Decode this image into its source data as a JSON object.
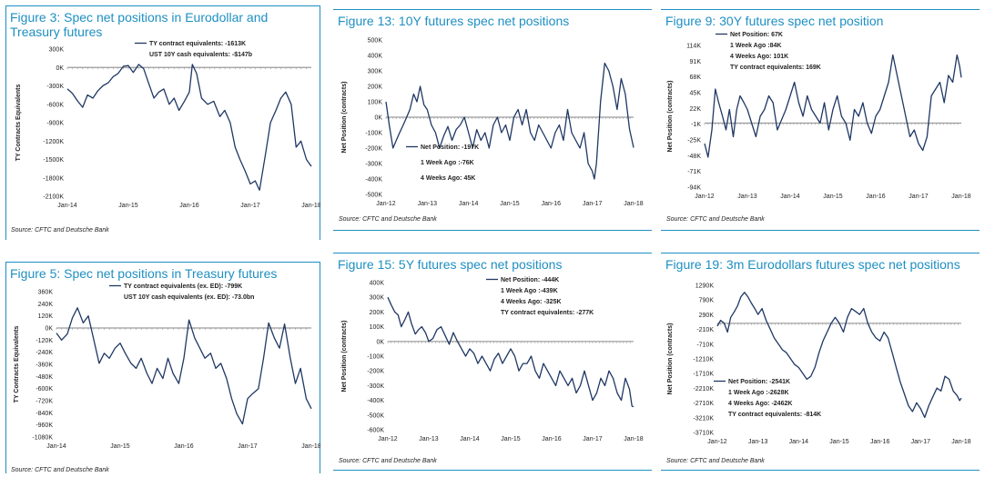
{
  "colors": {
    "accent": "#1e8fc2",
    "series": "#1f3864",
    "zero_line": "#9a9a9a"
  },
  "chart_data": [
    {
      "id": "fig3",
      "type": "line",
      "title": "Figure 3: Spec net positions in Eurodollar and Treasury futures",
      "ylabel": "TY Contracts Equivalents",
      "xlabel": "",
      "yticks": [
        "300K",
        "0K",
        "-300K",
        "-600K",
        "-900K",
        "-1200K",
        "-1500K",
        "-1800K",
        "-2100K"
      ],
      "ylim": [
        -2100,
        300
      ],
      "xticks": [
        "Jan-14",
        "Jan-15",
        "Jan-16",
        "Jan-17",
        "Jan-18"
      ],
      "xlim": [
        2014.0,
        2018.0
      ],
      "annotations": [
        "TY contract equivalents: -1613K",
        "UST 10Y cash equivalents: -$147b"
      ],
      "source": "Source: CFTC and Deutsche Bank",
      "series": [
        {
          "name": "TY contract equivalents",
          "x": [
            2014.0,
            2014.08,
            2014.17,
            2014.25,
            2014.33,
            2014.42,
            2014.5,
            2014.58,
            2014.67,
            2014.75,
            2014.83,
            2014.92,
            2015.0,
            2015.08,
            2015.17,
            2015.25,
            2015.33,
            2015.42,
            2015.5,
            2015.58,
            2015.67,
            2015.75,
            2015.83,
            2015.92,
            2016.0,
            2016.05,
            2016.12,
            2016.2,
            2016.3,
            2016.4,
            2016.5,
            2016.58,
            2016.67,
            2016.75,
            2016.83,
            2016.92,
            2017.0,
            2017.08,
            2017.15,
            2017.25,
            2017.33,
            2017.42,
            2017.5,
            2017.58,
            2017.67,
            2017.75,
            2017.83,
            2017.92,
            2018.0
          ],
          "values": [
            -350,
            -420,
            -550,
            -650,
            -450,
            -500,
            -380,
            -300,
            -250,
            -150,
            -100,
            20,
            30,
            -80,
            50,
            -20,
            -250,
            -500,
            -400,
            -350,
            -600,
            -500,
            -700,
            -550,
            -400,
            50,
            -100,
            -500,
            -600,
            -550,
            -800,
            -700,
            -900,
            -1300,
            -1500,
            -1700,
            -1900,
            -1850,
            -2000,
            -1400,
            -900,
            -700,
            -500,
            -400,
            -600,
            -1300,
            -1200,
            -1500,
            -1613
          ]
        }
      ]
    },
    {
      "id": "fig13",
      "type": "line",
      "title": "Figure 13: 10Y futures spec net positions",
      "ylabel": "Net Position (contracts)",
      "xlabel": "",
      "yticks": [
        "500K",
        "400K",
        "300K",
        "200K",
        "100K",
        "0K",
        "-100K",
        "-200K",
        "-300K",
        "-400K",
        "-500K"
      ],
      "ylim": [
        -500,
        500
      ],
      "xticks": [
        "Jan-12",
        "Jan-13",
        "Jan-14",
        "Jan-15",
        "Jan-16",
        "Jan-17",
        "Jan-18"
      ],
      "xlim": [
        2012.0,
        2018.0
      ],
      "annotations": [
        "Net Position: -197K",
        "1 Week Ago :-76K",
        "4 Weeks Ago: 45K"
      ],
      "source": "Source: CFTC and Deutsche Bank",
      "series": [
        {
          "name": "Net Position",
          "x": [
            2012.0,
            2012.08,
            2012.17,
            2012.25,
            2012.33,
            2012.42,
            2012.5,
            2012.58,
            2012.67,
            2012.75,
            2012.83,
            2012.92,
            2013.0,
            2013.1,
            2013.2,
            2013.3,
            2013.4,
            2013.5,
            2013.6,
            2013.7,
            2013.8,
            2013.9,
            2014.0,
            2014.1,
            2014.2,
            2014.3,
            2014.4,
            2014.5,
            2014.6,
            2014.7,
            2014.8,
            2014.9,
            2015.0,
            2015.1,
            2015.2,
            2015.3,
            2015.4,
            2015.5,
            2015.6,
            2015.7,
            2015.8,
            2015.9,
            2016.0,
            2016.1,
            2016.2,
            2016.3,
            2016.4,
            2016.5,
            2016.6,
            2016.7,
            2016.8,
            2016.9,
            2017.0,
            2017.05,
            2017.1,
            2017.2,
            2017.3,
            2017.4,
            2017.5,
            2017.6,
            2017.7,
            2017.8,
            2017.9,
            2018.0
          ],
          "values": [
            100,
            -50,
            -200,
            -150,
            -100,
            -50,
            0,
            50,
            150,
            100,
            200,
            80,
            50,
            -50,
            -100,
            -200,
            -120,
            -60,
            -150,
            -80,
            -50,
            0,
            -100,
            -200,
            -80,
            -150,
            -100,
            -200,
            -50,
            0,
            -100,
            -50,
            -150,
            0,
            50,
            -50,
            50,
            -100,
            -150,
            -50,
            -100,
            -150,
            -200,
            -100,
            -50,
            -150,
            50,
            -100,
            -150,
            -200,
            -100,
            -300,
            -350,
            -400,
            -300,
            100,
            350,
            300,
            200,
            50,
            250,
            150,
            -76,
            -197
          ]
        }
      ]
    },
    {
      "id": "fig9",
      "type": "line",
      "title": "Figure 9: 30Y futures spec net position",
      "ylabel": "Net Position (contracts)",
      "xlabel": "",
      "yticks": [
        "114K",
        "91K",
        "68K",
        "45K",
        "22K",
        "-1K",
        "-25K",
        "-48K",
        "-71K",
        "-94K"
      ],
      "ylim": [
        -94,
        114
      ],
      "xticks": [
        "Jan-12",
        "Jan-13",
        "Jan-14",
        "Jan-15",
        "Jan-16",
        "Jan-17",
        "Jan-18"
      ],
      "xlim": [
        2012.0,
        2018.0
      ],
      "annotations": [
        "Net Position: 67K",
        "1 Week Ago :84K",
        "4 Weeks Ago: 101K",
        "TY contract equivalents: 169K"
      ],
      "source": "Source: CFTC and Deutsche Bank",
      "series": [
        {
          "name": "Net Position",
          "x": [
            2012.0,
            2012.08,
            2012.17,
            2012.25,
            2012.33,
            2012.42,
            2012.5,
            2012.58,
            2012.67,
            2012.75,
            2012.83,
            2012.92,
            2013.0,
            2013.1,
            2013.2,
            2013.3,
            2013.4,
            2013.5,
            2013.6,
            2013.7,
            2013.8,
            2013.9,
            2014.0,
            2014.1,
            2014.2,
            2014.3,
            2014.4,
            2014.5,
            2014.6,
            2014.7,
            2014.8,
            2014.9,
            2015.0,
            2015.1,
            2015.2,
            2015.3,
            2015.4,
            2015.5,
            2015.6,
            2015.7,
            2015.8,
            2015.9,
            2016.0,
            2016.1,
            2016.2,
            2016.3,
            2016.4,
            2016.5,
            2016.6,
            2016.7,
            2016.8,
            2016.9,
            2017.0,
            2017.1,
            2017.2,
            2017.3,
            2017.4,
            2017.5,
            2017.6,
            2017.7,
            2017.8,
            2017.9,
            2017.96,
            2018.0
          ],
          "values": [
            -30,
            -50,
            -10,
            50,
            30,
            10,
            -10,
            20,
            -20,
            20,
            40,
            30,
            20,
            0,
            -20,
            10,
            20,
            40,
            30,
            -10,
            5,
            20,
            40,
            60,
            30,
            10,
            40,
            20,
            10,
            0,
            30,
            -10,
            20,
            40,
            10,
            0,
            -25,
            20,
            10,
            30,
            0,
            -15,
            10,
            20,
            40,
            60,
            100,
            70,
            40,
            10,
            -20,
            -10,
            -30,
            -40,
            -20,
            40,
            50,
            60,
            30,
            70,
            60,
            100,
            84,
            67
          ]
        }
      ]
    },
    {
      "id": "fig5",
      "type": "line",
      "title": "Figure 5: Spec net positions in Treasury futures",
      "ylabel": "TY Contracts Equivalents",
      "xlabel": "",
      "yticks": [
        "360K",
        "240K",
        "120K",
        "0K",
        "-120K",
        "-240K",
        "-360K",
        "-480K",
        "-600K",
        "-720K",
        "-840K",
        "-960K",
        "-1080K"
      ],
      "ylim": [
        -1080,
        360
      ],
      "xticks": [
        "Jan-14",
        "Jan-15",
        "Jan-16",
        "Jan-17",
        "Jan-18"
      ],
      "xlim": [
        2014.0,
        2018.0
      ],
      "annotations": [
        "TY contract equivalents (ex. ED): -799K",
        "UST 10Y cash equivalents (ex. ED): -73.0bn"
      ],
      "source": "Source: CFTC and Deutsche Bank",
      "series": [
        {
          "name": "TY contract equivalents (ex. ED)",
          "x": [
            2014.0,
            2014.08,
            2014.17,
            2014.25,
            2014.33,
            2014.42,
            2014.5,
            2014.58,
            2014.67,
            2014.75,
            2014.83,
            2014.92,
            2015.0,
            2015.08,
            2015.17,
            2015.25,
            2015.33,
            2015.42,
            2015.5,
            2015.58,
            2015.67,
            2015.75,
            2015.83,
            2015.92,
            2016.0,
            2016.08,
            2016.17,
            2016.25,
            2016.33,
            2016.42,
            2016.5,
            2016.58,
            2016.67,
            2016.75,
            2016.83,
            2016.92,
            2017.0,
            2017.08,
            2017.17,
            2017.25,
            2017.33,
            2017.42,
            2017.5,
            2017.58,
            2017.67,
            2017.75,
            2017.83,
            2017.92,
            2018.0
          ],
          "values": [
            -50,
            -120,
            -60,
            100,
            200,
            50,
            120,
            -100,
            -350,
            -250,
            -300,
            -200,
            -150,
            -250,
            -350,
            -400,
            -300,
            -450,
            -550,
            -400,
            -500,
            -300,
            -450,
            -550,
            -300,
            80,
            -100,
            -200,
            -300,
            -250,
            -400,
            -350,
            -500,
            -700,
            -850,
            -950,
            -700,
            -650,
            -600,
            -300,
            50,
            -100,
            -200,
            40,
            -300,
            -550,
            -400,
            -700,
            -799
          ]
        }
      ]
    },
    {
      "id": "fig15",
      "type": "line",
      "title": "Figure 15: 5Y futures spec net positions",
      "ylabel": "Net Position (contracts)",
      "xlabel": "",
      "yticks": [
        "400K",
        "300K",
        "200K",
        "100K",
        "0K",
        "-100K",
        "-200K",
        "-300K",
        "-400K",
        "-500K",
        "-600K"
      ],
      "ylim": [
        -600,
        400
      ],
      "xticks": [
        "Jan-12",
        "Jan-13",
        "Jan-14",
        "Jan-15",
        "Jan-16",
        "Jan-17",
        "Jan-18"
      ],
      "xlim": [
        2012.0,
        2018.0
      ],
      "annotations": [
        "Net Position: -444K",
        "1 Week Ago :-439K",
        "4 Weeks Ago: -325K",
        "TY contract equivalents: -277K"
      ],
      "source": "Source: CFTC and Deutsche Bank",
      "series": [
        {
          "name": "Net Position",
          "x": [
            2012.0,
            2012.08,
            2012.17,
            2012.25,
            2012.33,
            2012.42,
            2012.5,
            2012.58,
            2012.67,
            2012.75,
            2012.83,
            2012.92,
            2013.0,
            2013.1,
            2013.2,
            2013.3,
            2013.4,
            2013.5,
            2013.6,
            2013.7,
            2013.8,
            2013.9,
            2014.0,
            2014.1,
            2014.2,
            2014.3,
            2014.4,
            2014.5,
            2014.6,
            2014.7,
            2014.8,
            2014.9,
            2015.0,
            2015.1,
            2015.2,
            2015.3,
            2015.4,
            2015.5,
            2015.6,
            2015.7,
            2015.8,
            2015.9,
            2016.0,
            2016.1,
            2016.2,
            2016.3,
            2016.4,
            2016.5,
            2016.6,
            2016.7,
            2016.8,
            2016.9,
            2017.0,
            2017.1,
            2017.2,
            2017.3,
            2017.4,
            2017.5,
            2017.6,
            2017.7,
            2017.8,
            2017.9,
            2017.96,
            2018.0
          ],
          "values": [
            300,
            250,
            200,
            180,
            100,
            150,
            200,
            120,
            50,
            80,
            100,
            60,
            0,
            20,
            80,
            100,
            40,
            -20,
            60,
            0,
            -50,
            -100,
            -50,
            -80,
            -150,
            -100,
            -150,
            -200,
            -120,
            -80,
            -150,
            -100,
            -50,
            -100,
            -200,
            -150,
            -150,
            -100,
            -200,
            -250,
            -150,
            -200,
            -250,
            -300,
            -200,
            -250,
            -300,
            -250,
            -350,
            -300,
            -200,
            -300,
            -400,
            -350,
            -250,
            -300,
            -200,
            -250,
            -350,
            -400,
            -250,
            -325,
            -439,
            -444
          ]
        }
      ]
    },
    {
      "id": "fig19",
      "type": "line",
      "title": "Figure 19: 3m Eurodollars futures spec net positions",
      "ylabel": "Net Position (contracts)",
      "xlabel": "",
      "yticks": [
        "1290K",
        "790K",
        "290K",
        "-210K",
        "-710K",
        "-1210K",
        "-1710K",
        "-2210K",
        "-2710K",
        "-3210K",
        "-3710K"
      ],
      "ylim": [
        -3710,
        1290
      ],
      "xticks": [
        "Jan-12",
        "Jan-13",
        "Jan-14",
        "Jan-15",
        "Jan-16",
        "Jan-17",
        "Jan-18"
      ],
      "xlim": [
        2012.0,
        2018.0
      ],
      "annotations": [
        "Net Position: -2541K",
        "1 Week Ago :-2628K",
        "4 Weeks Ago: -2462K",
        "TY contract equivalents: -814K"
      ],
      "source": "Source: CFTC and Deutsche Bank",
      "series": [
        {
          "name": "Net Position",
          "x": [
            2012.0,
            2012.08,
            2012.17,
            2012.25,
            2012.33,
            2012.42,
            2012.5,
            2012.58,
            2012.67,
            2012.75,
            2012.83,
            2012.92,
            2013.0,
            2013.1,
            2013.2,
            2013.3,
            2013.4,
            2013.5,
            2013.6,
            2013.7,
            2013.8,
            2013.9,
            2014.0,
            2014.1,
            2014.2,
            2014.3,
            2014.4,
            2014.5,
            2014.6,
            2014.7,
            2014.8,
            2014.9,
            2015.0,
            2015.1,
            2015.2,
            2015.3,
            2015.4,
            2015.5,
            2015.6,
            2015.7,
            2015.8,
            2015.9,
            2016.0,
            2016.1,
            2016.2,
            2016.3,
            2016.4,
            2016.5,
            2016.6,
            2016.7,
            2016.8,
            2016.9,
            2017.0,
            2017.1,
            2017.2,
            2017.3,
            2017.4,
            2017.5,
            2017.6,
            2017.7,
            2017.8,
            2017.9,
            2017.96,
            2018.0
          ],
          "values": [
            -100,
            100,
            0,
            -300,
            200,
            400,
            600,
            900,
            1050,
            900,
            700,
            500,
            300,
            500,
            100,
            -200,
            -500,
            -700,
            -900,
            -1000,
            -1200,
            -1400,
            -1500,
            -1700,
            -1900,
            -1800,
            -1500,
            -1000,
            -600,
            -300,
            0,
            200,
            0,
            -300,
            200,
            500,
            400,
            300,
            500,
            0,
            -300,
            -500,
            -600,
            -300,
            -500,
            -1000,
            -1500,
            -2000,
            -2400,
            -2800,
            -3000,
            -2700,
            -2900,
            -3200,
            -2800,
            -2500,
            -2200,
            -2300,
            -1800,
            -1900,
            -2300,
            -2462,
            -2628,
            -2541
          ]
        }
      ]
    }
  ]
}
